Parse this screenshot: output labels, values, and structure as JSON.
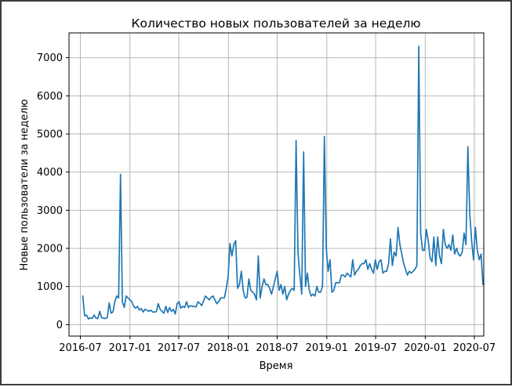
{
  "chart_data": {
    "type": "line",
    "title": "Количество новых пользователей за неделю",
    "xlabel": "Время",
    "ylabel": "Новые пользователи за неделю",
    "xlim": [
      "2016-05-20",
      "2020-08-05"
    ],
    "ylim": [
      -300,
      7650
    ],
    "grid": true,
    "x_ticks": [
      "2016-07",
      "2017-01",
      "2017-07",
      "2018-01",
      "2018-07",
      "2019-01",
      "2019-07",
      "2020-01",
      "2020-07"
    ],
    "y_ticks": [
      0,
      1000,
      2000,
      3000,
      4000,
      5000,
      6000,
      7000
    ],
    "line_color": "#1f77b4",
    "series": [
      {
        "start_date": "2016-07-10",
        "interval_days": 7,
        "values": [
          750,
          230,
          250,
          150,
          180,
          160,
          250,
          170,
          160,
          350,
          180,
          170,
          160,
          190,
          570,
          300,
          330,
          600,
          750,
          700,
          3940,
          600,
          450,
          750,
          700,
          650,
          600,
          480,
          430,
          480,
          380,
          420,
          330,
          400,
          380,
          350,
          380,
          330,
          330,
          340,
          550,
          400,
          350,
          300,
          480,
          320,
          450,
          350,
          400,
          280,
          550,
          600,
          430,
          480,
          450,
          600,
          450,
          500,
          480,
          480,
          460,
          600,
          560,
          500,
          620,
          750,
          700,
          650,
          720,
          750,
          650,
          550,
          600,
          700,
          700,
          700,
          950,
          1250,
          2130,
          1800,
          2100,
          2200,
          950,
          1050,
          1400,
          900,
          700,
          720,
          1200,
          900,
          850,
          800,
          650,
          1800,
          700,
          1000,
          1200,
          1050,
          1050,
          950,
          800,
          1000,
          1200,
          1400,
          900,
          1050,
          800,
          1000,
          650,
          800,
          900,
          950,
          900,
          4830,
          1900,
          1300,
          800,
          4530,
          1000,
          1350,
          900,
          750,
          800,
          750,
          1000,
          850,
          850,
          1000,
          4930,
          2000,
          1400,
          1700,
          850,
          900,
          1100,
          1100,
          1100,
          1300,
          1300,
          1250,
          1350,
          1300,
          1250,
          1700,
          1300,
          1400,
          1450,
          1550,
          1600,
          1600,
          1700,
          1450,
          1600,
          1450,
          1350,
          1700,
          1450,
          1650,
          1700,
          1350,
          1400,
          1400,
          1600,
          2250,
          1550,
          1900,
          1800,
          2550,
          2100,
          1850,
          1600,
          1450,
          1300,
          1400,
          1350,
          1400,
          1450,
          1550,
          7300,
          2400,
          1950,
          1950,
          2500,
          2200,
          1750,
          1650,
          2300,
          1550,
          2300,
          1800,
          1600,
          2500,
          2100,
          2000,
          2100,
          1950,
          2350,
          1850,
          2000,
          1850,
          1800,
          1900,
          2400,
          2100,
          4670,
          2900,
          2200,
          1700,
          2550,
          1950,
          1700,
          1850,
          1050
        ]
      }
    ]
  }
}
